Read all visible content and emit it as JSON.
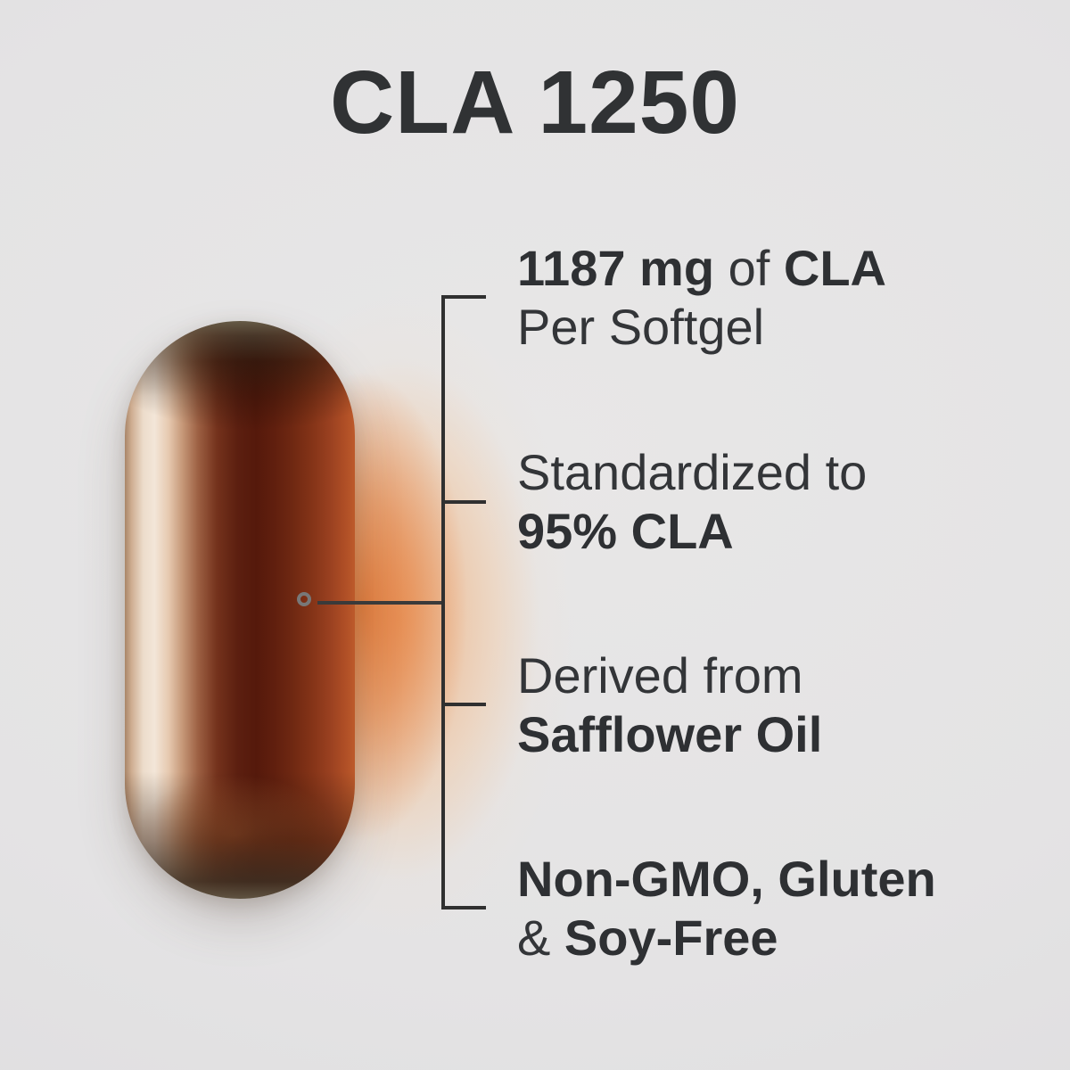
{
  "title": "CLA 1250",
  "callouts": [
    {
      "name": "dosage",
      "lines": [
        [
          {
            "text": "1187 mg",
            "bold": true
          },
          {
            "text": " of ",
            "bold": false
          },
          {
            "text": "CLA",
            "bold": true
          }
        ],
        [
          {
            "text": "Per Softgel",
            "bold": false
          }
        ]
      ]
    },
    {
      "name": "standardization",
      "lines": [
        [
          {
            "text": "Standardized to",
            "bold": false
          }
        ],
        [
          {
            "text": "95% CLA",
            "bold": true
          }
        ]
      ]
    },
    {
      "name": "source",
      "lines": [
        [
          {
            "text": "Derived from",
            "bold": false
          }
        ],
        [
          {
            "text": "Safflower Oil",
            "bold": true
          }
        ]
      ]
    },
    {
      "name": "free-from",
      "lines": [
        [
          {
            "text": "Non-GMO, Gluten",
            "bold": true
          }
        ],
        [
          {
            "text": "& ",
            "bold": false
          },
          {
            "text": "Soy-Free",
            "bold": true
          }
        ]
      ]
    }
  ],
  "colors": {
    "background": "#e4e3e4",
    "text": "#333538",
    "callout_line": "#303030",
    "glow": "#ec9a62",
    "capsule_amber": "#5c1f10",
    "capsule_highlight": "#f3e6d8",
    "capsule_rim": "#685e4a"
  }
}
